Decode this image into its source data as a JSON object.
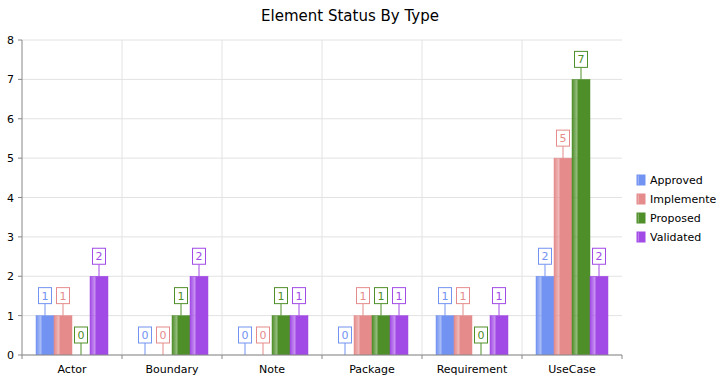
{
  "chart_data": {
    "type": "bar",
    "title": "Element Status By Type",
    "categories": [
      "Actor",
      "Boundary",
      "Note",
      "Package",
      "Requirement",
      "UseCase"
    ],
    "series": [
      {
        "name": "Approved",
        "color": "#7393f2",
        "values": [
          1,
          0,
          0,
          0,
          1,
          2
        ]
      },
      {
        "name": "Implemented",
        "color": "#e58b8b",
        "values": [
          1,
          0,
          0,
          1,
          1,
          5
        ]
      },
      {
        "name": "Proposed",
        "color": "#4f8f2a",
        "values": [
          0,
          1,
          1,
          1,
          0,
          7
        ]
      },
      {
        "name": "Validated",
        "color": "#a24ae6",
        "values": [
          2,
          2,
          1,
          1,
          1,
          2
        ]
      }
    ],
    "ylim": [
      0,
      8
    ],
    "yticks": [
      0,
      1,
      2,
      3,
      4,
      5,
      6,
      7,
      8
    ],
    "grid": true,
    "legend": "right",
    "data_labels": true
  }
}
